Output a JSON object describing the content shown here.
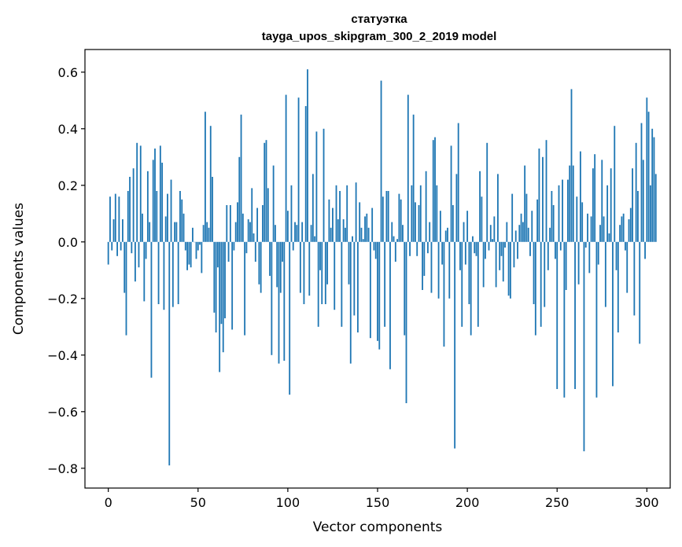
{
  "chart_data": {
    "type": "bar",
    "title": "статуэтка",
    "subtitle": "tayga_upos_skipgram_300_2_2019 model",
    "xlabel": "Vector components",
    "ylabel": "Components values",
    "xlim": [
      -13,
      313
    ],
    "ylim": [
      -0.87,
      0.68
    ],
    "xticks": [
      0,
      50,
      100,
      150,
      200,
      250,
      300
    ],
    "yticks": [
      -0.8,
      -0.6,
      -0.4,
      -0.2,
      0.0,
      0.2,
      0.4,
      0.6
    ],
    "ytick_labels": [
      "−0.8",
      "−0.6",
      "−0.4",
      "−0.2",
      "0.0",
      "0.2",
      "0.4",
      "0.6"
    ],
    "bar_color": "#1f77b4",
    "grid": false,
    "series": [
      {
        "values": [
          -0.08,
          0.16,
          -0.03,
          0.08,
          0.17,
          -0.05,
          0.16,
          -0.03,
          0.08,
          -0.18,
          -0.33,
          0.18,
          0.23,
          -0.04,
          0.26,
          -0.14,
          0.35,
          -0.09,
          0.34,
          0.1,
          -0.21,
          -0.06,
          0.25,
          0.07,
          -0.48,
          0.29,
          0.33,
          0.18,
          -0.22,
          0.34,
          0.28,
          -0.24,
          0.09,
          0.17,
          -0.79,
          0.22,
          -0.23,
          0.07,
          0.07,
          -0.22,
          0.18,
          0.15,
          0.1,
          -0.03,
          -0.1,
          -0.08,
          -0.09,
          0.05,
          0.0,
          -0.06,
          -0.03,
          -0.01,
          -0.11,
          0.06,
          0.46,
          0.07,
          0.05,
          0.41,
          0.23,
          -0.25,
          -0.32,
          -0.09,
          -0.46,
          -0.29,
          -0.39,
          -0.27,
          0.13,
          -0.07,
          0.13,
          -0.31,
          -0.03,
          0.07,
          0.14,
          0.3,
          0.45,
          0.1,
          -0.33,
          -0.04,
          0.08,
          0.07,
          0.19,
          0.03,
          -0.07,
          0.12,
          -0.15,
          -0.18,
          0.13,
          0.35,
          0.36,
          0.19,
          -0.12,
          -0.4,
          0.27,
          0.06,
          -0.16,
          -0.43,
          -0.18,
          -0.07,
          -0.42,
          0.52,
          0.11,
          -0.54,
          0.2,
          -0.03,
          0.07,
          0.06,
          0.51,
          -0.18,
          0.07,
          -0.22,
          0.48,
          0.61,
          -0.19,
          0.06,
          0.24,
          0.02,
          0.39,
          -0.3,
          -0.1,
          -0.22,
          0.4,
          -0.22,
          -0.15,
          0.15,
          0.05,
          0.12,
          -0.24,
          0.2,
          0.08,
          0.18,
          -0.3,
          0.08,
          0.05,
          0.2,
          -0.15,
          -0.43,
          0.02,
          -0.26,
          0.21,
          -0.32,
          0.14,
          0.05,
          0.01,
          0.09,
          0.1,
          0.05,
          -0.34,
          0.12,
          -0.03,
          -0.06,
          -0.35,
          -0.38,
          0.57,
          0.16,
          -0.3,
          0.18,
          0.18,
          -0.45,
          0.07,
          0.02,
          -0.07,
          0.01,
          0.17,
          0.15,
          0.06,
          -0.33,
          -0.57,
          0.52,
          -0.05,
          0.2,
          0.45,
          0.14,
          -0.05,
          0.13,
          0.2,
          -0.17,
          -0.12,
          0.25,
          -0.04,
          0.07,
          -0.18,
          0.36,
          0.37,
          0.2,
          -0.2,
          0.11,
          -0.08,
          -0.37,
          0.04,
          0.05,
          -0.2,
          0.34,
          0.13,
          -0.73,
          0.24,
          0.42,
          -0.1,
          -0.3,
          0.07,
          -0.08,
          0.11,
          -0.22,
          -0.33,
          0.02,
          -0.04,
          -0.05,
          -0.3,
          0.25,
          0.16,
          -0.16,
          -0.06,
          0.35,
          -0.03,
          0.06,
          0.01,
          0.09,
          -0.16,
          0.24,
          -0.1,
          -0.05,
          -0.14,
          -0.02,
          0.07,
          -0.19,
          -0.2,
          0.17,
          -0.09,
          0.04,
          -0.06,
          0.06,
          0.1,
          0.07,
          0.27,
          0.17,
          0.05,
          -0.05,
          0.11,
          -0.22,
          -0.33,
          0.15,
          0.33,
          -0.3,
          0.3,
          -0.23,
          0.36,
          -0.1,
          0.05,
          0.18,
          0.13,
          -0.06,
          -0.52,
          0.2,
          -0.03,
          0.22,
          -0.55,
          -0.17,
          0.22,
          0.27,
          0.54,
          0.27,
          -0.52,
          0.16,
          -0.15,
          0.32,
          0.14,
          -0.74,
          -0.02,
          0.1,
          -0.11,
          0.09,
          0.26,
          0.31,
          -0.55,
          -0.08,
          0.06,
          0.29,
          0.09,
          -0.23,
          0.2,
          0.03,
          0.26,
          -0.51,
          0.41,
          -0.1,
          -0.32,
          0.06,
          0.09,
          0.1,
          -0.03,
          -0.18,
          0.08,
          0.12,
          0.26,
          -0.26,
          0.35,
          0.18,
          -0.36,
          0.42,
          0.29,
          -0.06,
          0.51,
          0.46,
          0.2,
          0.4,
          0.37,
          0.24
        ]
      }
    ]
  }
}
